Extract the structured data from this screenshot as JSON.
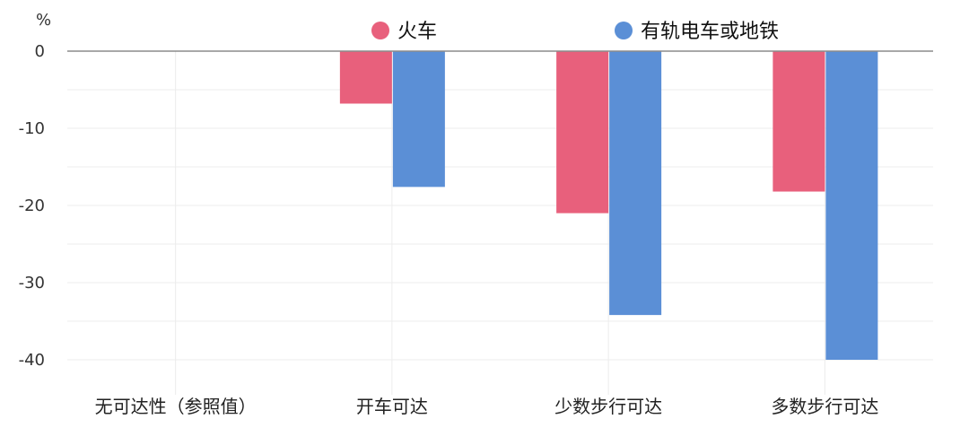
{
  "chart_data": {
    "type": "bar",
    "unit_label": "%",
    "categories": [
      "无可达性（参照值）",
      "开车可达",
      "少数步行可达",
      "多数步行可达"
    ],
    "series": [
      {
        "name": "火车",
        "color": "#e8607c",
        "values": [
          0,
          -6.8,
          -21.0,
          -18.2
        ]
      },
      {
        "name": "有轨电车或地铁",
        "color": "#5b8fd6",
        "values": [
          0,
          -17.6,
          -34.2,
          -40.0
        ]
      }
    ],
    "y_ticks": [
      0,
      -10,
      -20,
      -30,
      -40
    ],
    "ylim": [
      -43,
      3
    ],
    "grid": true,
    "legend_position": "top"
  }
}
